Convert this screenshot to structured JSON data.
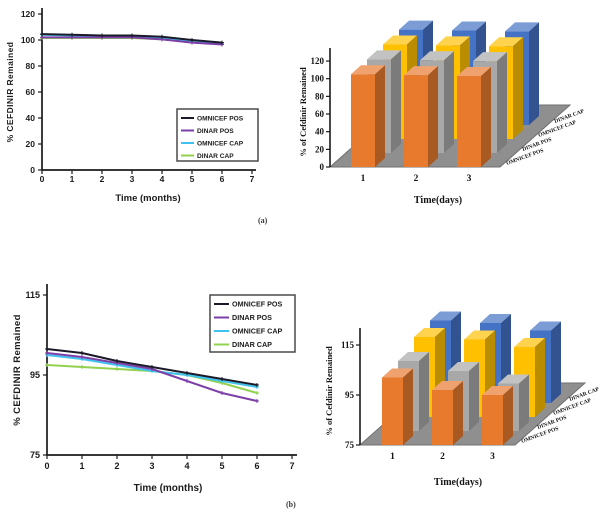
{
  "figure": {
    "panel_a_label": "(a)",
    "panel_b_label": "(b)"
  },
  "palette": {
    "background": "#ffffff",
    "axis": "#1b1b1b",
    "floor": "#8f8f8f",
    "omnicef_pos_line": "#1a1a28",
    "dinar_pos_line": "#7d3fa8",
    "omnicef_cap_line": "#3fc2ee",
    "dinar_cap_line": "#92d050",
    "omnicef_pos_bar": "#e87a2e",
    "dinar_pos_bar": "#a8a8a8",
    "omnicef_cap_bar": "#ffc000",
    "dinar_cap_bar": "#4472c4"
  },
  "chart_data": [
    {
      "id": "line-a",
      "type": "line",
      "title": "",
      "xlabel": "Time (months)",
      "ylabel": "% CEFDINIR Remained",
      "x": [
        0,
        1,
        2,
        3,
        4,
        5,
        6
      ],
      "xticks": [
        0,
        1,
        2,
        3,
        4,
        5,
        6,
        7
      ],
      "yticks": [
        0,
        20,
        40,
        60,
        80,
        100,
        120
      ],
      "xlim": [
        0,
        7
      ],
      "ylim": [
        0,
        120
      ],
      "grid": false,
      "legend_position": "inside-lower-right",
      "series": [
        {
          "name": "OMNICEF POS",
          "color": "#1a1a28",
          "values": [
            104.5,
            104,
            103.5,
            103.5,
            102.5,
            100,
            98
          ]
        },
        {
          "name": "DINAR POS",
          "color": "#7d3fa8",
          "values": [
            102,
            102,
            102,
            102,
            100.5,
            98,
            96.5
          ]
        },
        {
          "name": "OMNICEF CAP",
          "color": "#3fc2ee",
          "values": [
            104,
            103.5,
            103,
            103,
            101.5,
            99.5,
            97.5
          ]
        },
        {
          "name": "DINAR CAP",
          "color": "#92d050",
          "values": [
            101.5,
            101.5,
            101.5,
            101.5,
            100.5,
            99,
            97
          ]
        }
      ]
    },
    {
      "id": "bar3d-a",
      "type": "bar",
      "style": "3d",
      "title": "",
      "xlabel": "Time(days)",
      "ylabel": "% of Cefdinir Remained",
      "categories": [
        1,
        2,
        3
      ],
      "yticks": [
        0,
        20,
        40,
        60,
        80,
        100,
        120
      ],
      "ylim": [
        0,
        120
      ],
      "grid": false,
      "legend_position": "right-edge-rotated",
      "series": [
        {
          "name": "OMNICEF POS",
          "color": "#e87a2e",
          "values": [
            105,
            104,
            103
          ]
        },
        {
          "name": "DINAR POS",
          "color": "#a8a8a8",
          "values": [
            106,
            105,
            104
          ]
        },
        {
          "name": "OMNICEF CAP",
          "color": "#ffc000",
          "values": [
            107,
            106,
            105
          ]
        },
        {
          "name": "DINAR CAP",
          "color": "#4472c4",
          "values": [
            108,
            107,
            106
          ]
        }
      ]
    },
    {
      "id": "line-b",
      "type": "line",
      "title": "",
      "xlabel": "Time (months)",
      "ylabel": "% CEFDINIR Remained",
      "x": [
        0,
        1,
        2,
        3,
        4,
        5,
        6
      ],
      "xticks": [
        0,
        1,
        2,
        3,
        4,
        5,
        6,
        7
      ],
      "yticks": [
        75,
        95,
        115
      ],
      "xlim": [
        0,
        7
      ],
      "ylim": [
        75,
        115
      ],
      "grid": false,
      "legend_position": "inside-upper-right",
      "series": [
        {
          "name": "OMNICEF POS",
          "color": "#1a1a28",
          "values": [
            101.5,
            100.5,
            98.5,
            97,
            95.5,
            94,
            92.5
          ]
        },
        {
          "name": "DINAR POS",
          "color": "#7d3fa8",
          "values": [
            100.5,
            99.5,
            98,
            96.5,
            93.5,
            90.5,
            88.5
          ]
        },
        {
          "name": "OMNICEF CAP",
          "color": "#3fc2ee",
          "values": [
            100,
            99,
            97.5,
            96,
            95,
            93.5,
            92
          ]
        },
        {
          "name": "DINAR CAP",
          "color": "#92d050",
          "values": [
            97.5,
            97,
            96.5,
            96,
            95,
            93,
            90.5
          ]
        }
      ]
    },
    {
      "id": "bar3d-b",
      "type": "bar",
      "style": "3d",
      "title": "",
      "xlabel": "Time(days)",
      "ylabel": "% of Cefdinir Remained",
      "categories": [
        1,
        2,
        3
      ],
      "yticks": [
        75,
        95,
        115
      ],
      "ylim": [
        75,
        115
      ],
      "grid": false,
      "legend_position": "right-edge-rotated",
      "series": [
        {
          "name": "OMNICEF POS",
          "color": "#e87a2e",
          "values": [
            102,
            97,
            95
          ]
        },
        {
          "name": "DINAR POS",
          "color": "#a8a8a8",
          "values": [
            103,
            99,
            94
          ]
        },
        {
          "name": "OMNICEF CAP",
          "color": "#ffc000",
          "values": [
            107,
            106,
            103
          ]
        },
        {
          "name": "DINAR CAP",
          "color": "#4472c4",
          "values": [
            108,
            107,
            104
          ]
        }
      ]
    }
  ]
}
